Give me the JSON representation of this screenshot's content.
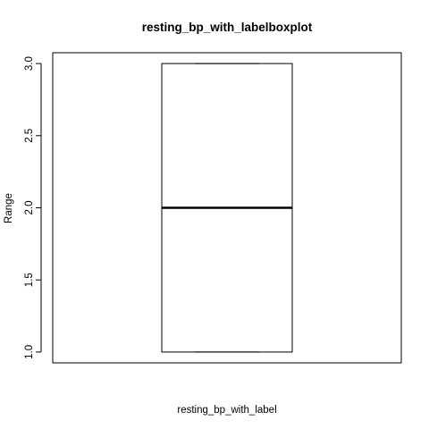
{
  "chart_data": {
    "type": "boxplot",
    "title": "resting_bp_with_labelboxplot",
    "xlabel": "resting_bp_with_label",
    "ylabel": "Range",
    "ylim": [
      0.925,
      3.075
    ],
    "yticks": [
      1.0,
      1.5,
      2.0,
      2.5,
      3.0
    ],
    "ytick_labels": [
      "1.0",
      "1.5",
      "2.0",
      "2.5",
      "3.0"
    ],
    "grid": false,
    "legend": "none",
    "box": {
      "min": 1.0,
      "q1": 1.0,
      "median": 2.0,
      "q3": 3.0,
      "max": 3.0
    },
    "colors": {
      "box_fill": "#ffffff",
      "stroke": "#000000"
    }
  }
}
